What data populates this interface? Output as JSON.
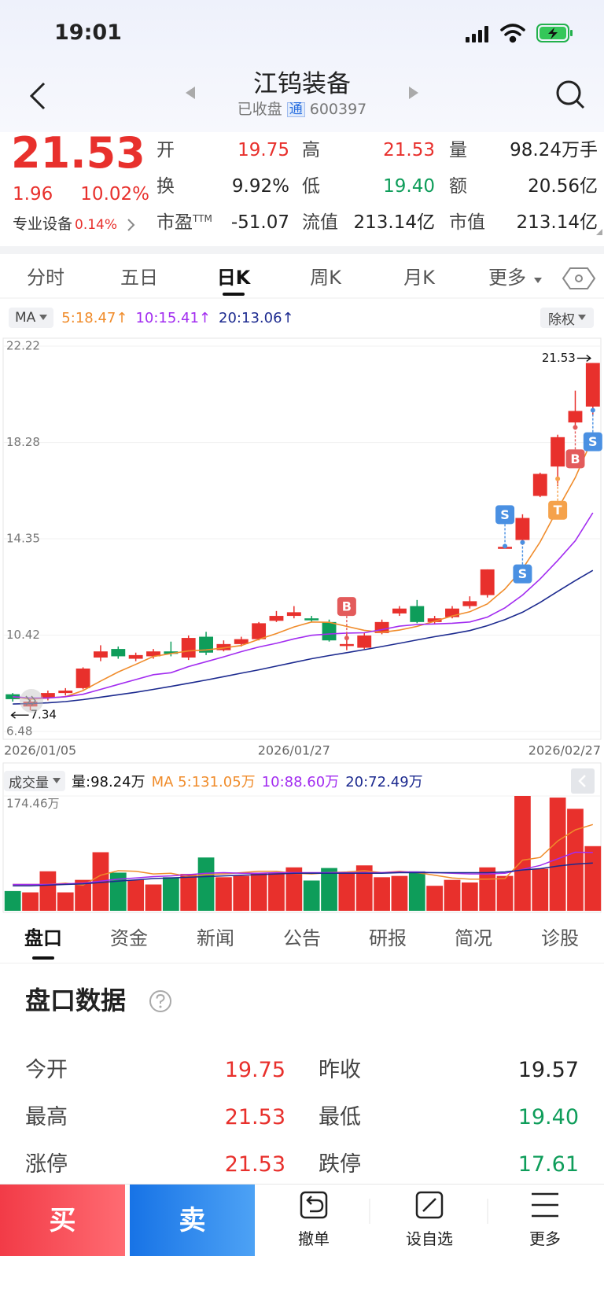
{
  "status_bar": {
    "time": "19:01"
  },
  "header": {
    "title": "江钨装备",
    "status": "已收盘",
    "badge": "通",
    "code": "600397"
  },
  "colors": {
    "up": "#e8302c",
    "down": "#0e9d5a",
    "flat": "#222222"
  },
  "quote": {
    "price": "21.53",
    "change": "1.96",
    "change_pct": "10.02%",
    "sector": "专业设备",
    "sector_pct": "0.14%",
    "fields": [
      [
        {
          "label": "开",
          "value": "19.75",
          "tone": "up"
        },
        {
          "label": "高",
          "value": "21.53",
          "tone": "up"
        },
        {
          "label": "量",
          "value": "98.24万手",
          "tone": "flat"
        }
      ],
      [
        {
          "label": "换",
          "value": "9.92%",
          "tone": "flat"
        },
        {
          "label": "低",
          "value": "19.40",
          "tone": "down"
        },
        {
          "label": "额",
          "value": "20.56亿",
          "tone": "flat"
        }
      ],
      [
        {
          "label": "市盈",
          "sup": "TTM",
          "value": "-51.07",
          "tone": "flat"
        },
        {
          "label": "流值",
          "value": "213.14亿",
          "tone": "flat"
        },
        {
          "label": "市值",
          "value": "213.14亿",
          "tone": "flat"
        }
      ]
    ]
  },
  "chart_tabs": {
    "items": [
      "分时",
      "五日",
      "日K",
      "周K",
      "月K",
      "更多"
    ],
    "active": 2
  },
  "chart_data": [
    {
      "type": "candlestick",
      "indicator": "MA",
      "adjust": "除权",
      "categories": [
        "2026/01/05",
        null,
        null,
        null,
        null,
        null,
        null,
        null,
        null,
        null,
        null,
        null,
        null,
        null,
        null,
        null,
        "2026/01/27",
        null,
        null,
        null,
        null,
        null,
        null,
        null,
        null,
        null,
        null,
        null,
        null,
        null,
        null,
        null,
        null,
        "2026/02/27"
      ],
      "open": [
        8.0,
        7.5,
        7.85,
        8.05,
        8.25,
        9.5,
        9.85,
        9.45,
        9.55,
        9.75,
        9.5,
        10.35,
        9.8,
        10.05,
        10.25,
        11.0,
        11.2,
        11.1,
        10.95,
        10.0,
        9.9,
        10.5,
        11.3,
        11.6,
        10.95,
        11.15,
        11.6,
        12.05,
        14.0,
        14.3,
        16.1,
        17.3,
        19.1,
        19.75
      ],
      "high": [
        8.05,
        7.8,
        8.15,
        8.25,
        9.1,
        10.0,
        9.95,
        9.7,
        9.85,
        10.15,
        10.4,
        10.55,
        10.2,
        10.35,
        10.95,
        11.4,
        11.6,
        11.2,
        11.05,
        10.5,
        10.5,
        11.05,
        11.6,
        11.85,
        11.2,
        11.6,
        12.0,
        13.1,
        14.1,
        15.35,
        17.05,
        18.6,
        20.4,
        21.53
      ],
      "low": [
        7.7,
        7.34,
        7.75,
        7.95,
        8.2,
        9.35,
        9.45,
        9.35,
        9.45,
        9.55,
        9.4,
        9.6,
        9.75,
        9.95,
        10.2,
        10.95,
        11.1,
        10.95,
        10.15,
        9.8,
        9.85,
        10.45,
        11.2,
        10.9,
        10.85,
        11.1,
        11.5,
        11.95,
        13.95,
        14.1,
        16.05,
        16.5,
        18.8,
        19.4
      ],
      "close": [
        7.8,
        7.7,
        8.05,
        8.15,
        9.05,
        9.75,
        9.55,
        9.6,
        9.75,
        9.65,
        10.3,
        9.7,
        10.05,
        10.25,
        10.9,
        11.2,
        11.35,
        11.05,
        10.2,
        10.05,
        10.4,
        10.95,
        11.5,
        10.95,
        11.1,
        11.5,
        11.8,
        13.1,
        14.02,
        15.2,
        17.0,
        18.5,
        19.57,
        21.53
      ],
      "up_color": "#e8302c",
      "down_color": "#0e9d5a",
      "ylim": [
        6.48,
        22.22
      ],
      "yticks": [
        6.48,
        10.42,
        14.35,
        18.28,
        22.22
      ],
      "grid": true,
      "lines": [
        {
          "name": "5:18.47↑",
          "color": "#f08c2b",
          "values": [
            7.9,
            7.8,
            7.85,
            7.9,
            8.15,
            8.54,
            8.91,
            9.22,
            9.54,
            9.66,
            9.77,
            9.81,
            9.89,
            9.99,
            10.24,
            10.48,
            10.75,
            10.95,
            10.94,
            10.77,
            10.61,
            10.53,
            10.62,
            10.77,
            10.98,
            11.2,
            11.37,
            11.69,
            12.3,
            13.12,
            14.22,
            15.56,
            16.85,
            18.47
          ]
        },
        {
          "name": "10:15.41↑",
          "color": "#a22cf0",
          "values": [
            7.9,
            7.85,
            7.85,
            7.9,
            8.0,
            8.2,
            8.4,
            8.6,
            8.8,
            8.88,
            9.13,
            9.33,
            9.53,
            9.74,
            9.93,
            10.08,
            10.26,
            10.41,
            10.46,
            10.5,
            10.51,
            10.64,
            10.78,
            10.85,
            10.87,
            10.9,
            10.95,
            11.15,
            11.53,
            12.05,
            12.71,
            13.46,
            14.27,
            15.41
          ]
        },
        {
          "name": "20:13.06↑",
          "color": "#1c2a8f",
          "values": [
            7.6,
            7.62,
            7.65,
            7.7,
            7.78,
            7.88,
            7.98,
            8.08,
            8.2,
            8.32,
            8.45,
            8.58,
            8.72,
            8.86,
            9.0,
            9.15,
            9.3,
            9.45,
            9.58,
            9.7,
            9.82,
            9.95,
            10.08,
            10.22,
            10.35,
            10.47,
            10.6,
            10.8,
            11.05,
            11.35,
            11.75,
            12.2,
            12.64,
            13.06
          ]
        }
      ],
      "max_label": "21.53",
      "min_label": "7.34",
      "markers": [
        {
          "label": "B",
          "index": 19,
          "price": 10.3,
          "position": "above",
          "color": "#e35b5b"
        },
        {
          "label": "S",
          "index": 28,
          "price": 14.05,
          "position": "above",
          "color": "#4a90e2"
        },
        {
          "label": "S",
          "index": 29,
          "price": 14.2,
          "position": "below",
          "color": "#4a90e2"
        },
        {
          "label": "T",
          "index": 31,
          "price": 16.8,
          "position": "below",
          "color": "#f5a24b"
        },
        {
          "label": "B",
          "index": 32,
          "price": 18.9,
          "position": "below",
          "color": "#e35b5b"
        },
        {
          "label": "S",
          "index": 33,
          "price": 19.6,
          "position": "below",
          "color": "#4a90e2"
        }
      ]
    },
    {
      "type": "bar",
      "title": "成交量",
      "volume_label": "量:98.24万",
      "values": [
        30,
        28,
        60,
        28,
        47,
        89,
        58,
        47,
        40,
        51,
        56,
        81,
        51,
        53,
        58,
        58,
        66,
        46,
        65,
        58,
        69,
        51,
        53,
        60,
        38,
        47,
        43,
        66,
        53,
        174.46,
        64,
        172,
        155,
        98.24
      ],
      "ylim": [
        0,
        174.46
      ],
      "yticks": [
        {
          "value": 174.46,
          "label": "174.46万"
        }
      ],
      "lines": [
        {
          "name": "MA 5:131.05万",
          "color": "#f08c2b",
          "values": [
            40,
            40,
            40,
            42,
            39,
            54,
            61,
            60,
            56,
            57,
            52,
            55,
            56,
            58,
            60,
            60,
            57,
            56,
            58,
            59,
            61,
            58,
            60,
            58,
            54,
            50,
            48,
            48,
            49,
            77,
            81,
            106,
            123,
            131.05
          ]
        },
        {
          "name": "10:88.60万",
          "color": "#a22cf0",
          "values": [
            40,
            40,
            40,
            41,
            42,
            45,
            48,
            50,
            52,
            53,
            55,
            57,
            58,
            57,
            57,
            58,
            58,
            58,
            58,
            58,
            58,
            58,
            59,
            59,
            58,
            57,
            56,
            56,
            57,
            63,
            69,
            79,
            89,
            88.6
          ]
        },
        {
          "name": "20:72.49万",
          "color": "#1c2a8f",
          "values": [
            38,
            38,
            39,
            40,
            41,
            43,
            45,
            47,
            49,
            50,
            51,
            52,
            53,
            54,
            55,
            56,
            57,
            57,
            57,
            57,
            57,
            57,
            58,
            58,
            58,
            58,
            58,
            58,
            59,
            62,
            64,
            68,
            71,
            72.49
          ]
        }
      ]
    }
  ],
  "info_tabs": {
    "items": [
      "盘口",
      "资金",
      "新闻",
      "公告",
      "研报",
      "简况",
      "诊股"
    ],
    "active": 0
  },
  "order_book": {
    "title": "盘口数据",
    "rows": [
      [
        {
          "label": "今开",
          "value": "19.75",
          "tone": "up"
        },
        {
          "label": "昨收",
          "value": "19.57",
          "tone": "flat"
        }
      ],
      [
        {
          "label": "最高",
          "value": "21.53",
          "tone": "up"
        },
        {
          "label": "最低",
          "value": "19.40",
          "tone": "down"
        }
      ],
      [
        {
          "label": "涨停",
          "value": "21.53",
          "tone": "up"
        },
        {
          "label": "跌停",
          "value": "17.61",
          "tone": "down"
        }
      ]
    ]
  },
  "actions": {
    "buy": "买",
    "sell": "卖",
    "items": [
      "撤单",
      "设自选",
      "更多"
    ]
  }
}
